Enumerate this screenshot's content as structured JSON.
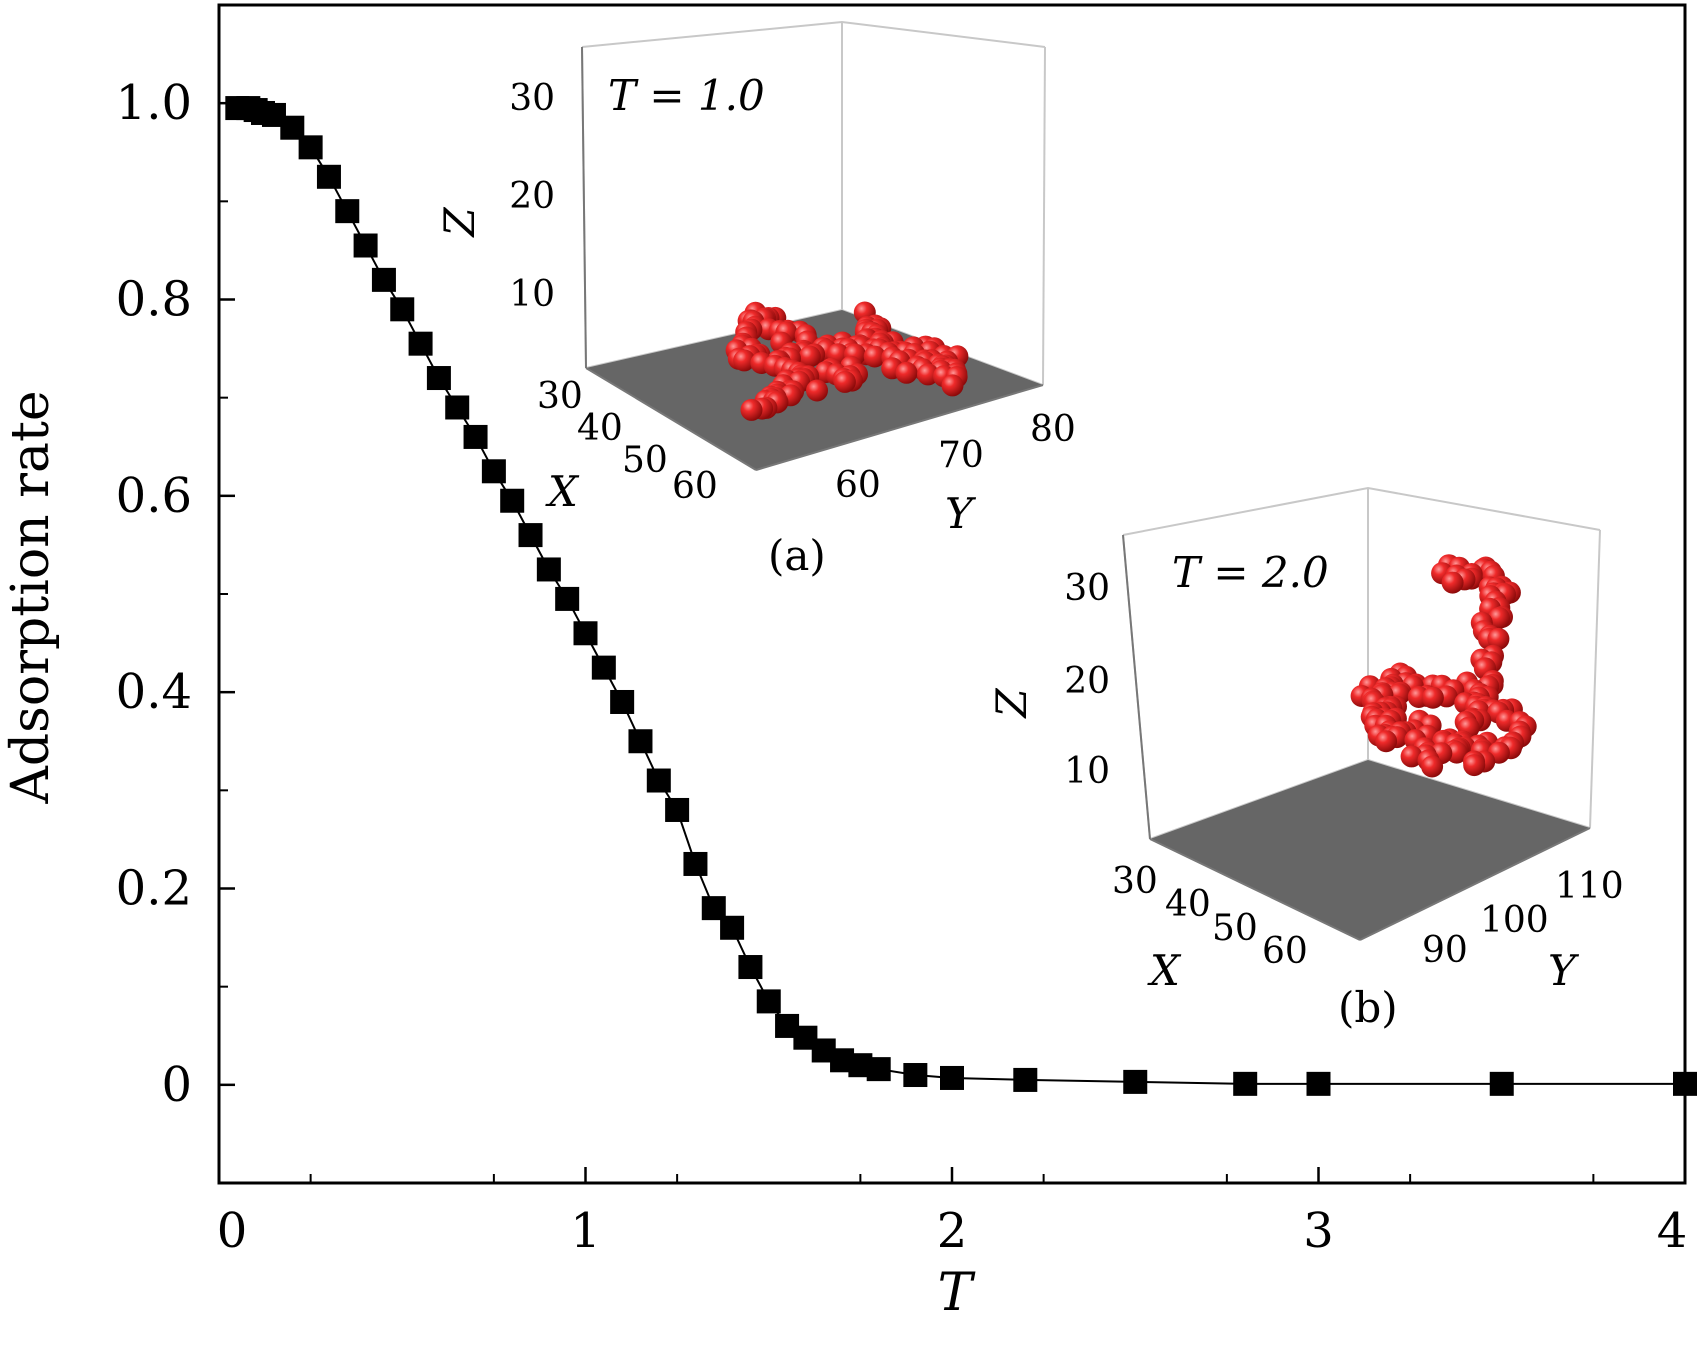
{
  "chart_data": {
    "type": "scatter",
    "xlabel": "T",
    "ylabel": "Adsorption rate",
    "xlim": [
      0,
      4
    ],
    "ylim": [
      -0.1,
      1.1
    ],
    "x_ticks": [
      0,
      1,
      2,
      3,
      4
    ],
    "x_tick_labels": [
      "0",
      "1",
      "2",
      "3",
      "4"
    ],
    "y_ticks": [
      0,
      0.2,
      0.4,
      0.6,
      0.8,
      1.0
    ],
    "y_tick_labels": [
      "0",
      "0.2",
      "0.4",
      "0.6",
      "0.8",
      "1.0"
    ],
    "grid": false,
    "marker": "square",
    "marker_color": "#000000",
    "connecting_line": true,
    "series": [
      {
        "x": [
          0.05,
          0.08,
          0.1,
          0.12,
          0.15,
          0.2,
          0.25,
          0.3,
          0.35,
          0.4,
          0.45,
          0.5,
          0.55,
          0.6,
          0.65,
          0.7,
          0.75,
          0.8,
          0.85,
          0.9,
          0.95,
          1.0,
          1.05,
          1.1,
          1.15,
          1.2,
          1.25,
          1.3,
          1.35,
          1.4,
          1.45,
          1.5,
          1.55,
          1.6,
          1.65,
          1.7,
          1.75,
          1.8,
          1.9,
          2.0,
          2.2,
          2.5,
          2.8,
          3.0,
          3.5,
          4.0
        ],
        "y": [
          0.995,
          0.995,
          0.993,
          0.99,
          0.988,
          0.975,
          0.955,
          0.925,
          0.89,
          0.855,
          0.82,
          0.79,
          0.755,
          0.72,
          0.69,
          0.66,
          0.625,
          0.595,
          0.56,
          0.525,
          0.495,
          0.46,
          0.425,
          0.39,
          0.35,
          0.31,
          0.28,
          0.225,
          0.18,
          0.16,
          0.12,
          0.085,
          0.06,
          0.048,
          0.035,
          0.025,
          0.02,
          0.016,
          0.01,
          0.007,
          0.005,
          0.003,
          0.001,
          0.001,
          0.001,
          0.001
        ]
      }
    ],
    "insets": [
      {
        "label": "(a)",
        "title": "T = 1.0",
        "z_label": "Z",
        "x_label": "X",
        "y_label": "Y",
        "z_ticks": [
          "30",
          "20",
          "10"
        ],
        "x_ticks": [
          "30",
          "40",
          "50",
          "60"
        ],
        "y_ticks": [
          "60",
          "70",
          "80"
        ]
      },
      {
        "label": "(b)",
        "title": "T = 2.0",
        "z_label": "Z",
        "x_label": "X",
        "y_label": "Y",
        "z_ticks": [
          "30",
          "20",
          "10"
        ],
        "x_ticks": [
          "30",
          "40",
          "50",
          "60"
        ],
        "y_ticks": [
          "90",
          "100",
          "110"
        ]
      }
    ]
  },
  "colors": {
    "marker": "#000000",
    "sphere": "#e0161b",
    "floor": "#666666",
    "box_line": "#c8c8c8"
  }
}
